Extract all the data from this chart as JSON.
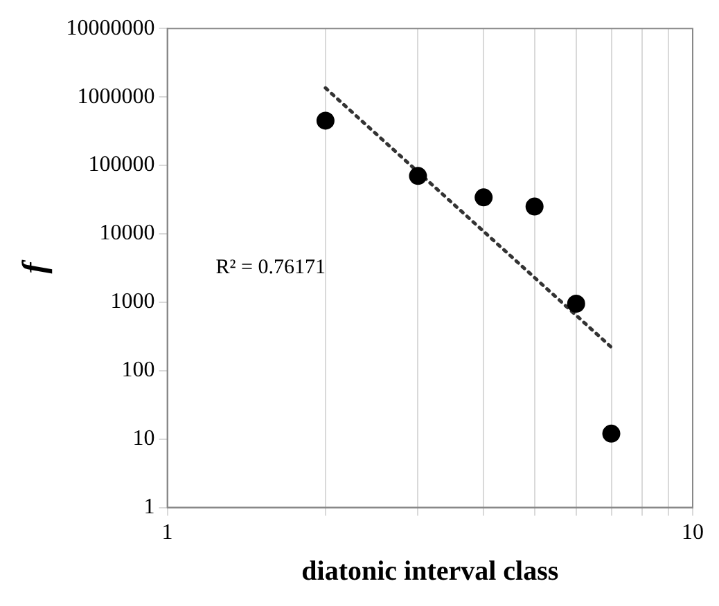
{
  "chart_data": {
    "type": "scatter",
    "xlabel": "diatonic interval class",
    "ylabel": "f",
    "log": "xy",
    "grid": "x",
    "marker": "circle",
    "xlim": [
      1,
      10
    ],
    "xticks": [
      1,
      {
        "value": 2,
        "label": null
      },
      {
        "value": 3,
        "label": null
      },
      {
        "value": 4,
        "label": null
      },
      {
        "value": 5,
        "label": null
      },
      {
        "value": 6,
        "label": null
      },
      {
        "value": 7,
        "label": null
      },
      {
        "value": 8,
        "label": null
      },
      {
        "value": 9,
        "label": null
      },
      10
    ],
    "ylim": [
      1,
      10000000
    ],
    "yticks": [
      1,
      10,
      100,
      1000,
      10000,
      100000,
      1000000,
      10000000
    ],
    "x": [
      2,
      3,
      4,
      5,
      6,
      7
    ],
    "series": [
      {
        "color": "#000000",
        "values": [
          450000,
          70000,
          34000,
          25000,
          950,
          12
        ]
      },
      {
        "type": "line",
        "line_style": "dotted",
        "marker": "none",
        "color": "#333333",
        "x": [
          2,
          7
        ],
        "values": [
          1350000,
          220
        ]
      }
    ],
    "annotations": [
      "R² = 0.76171"
    ]
  }
}
